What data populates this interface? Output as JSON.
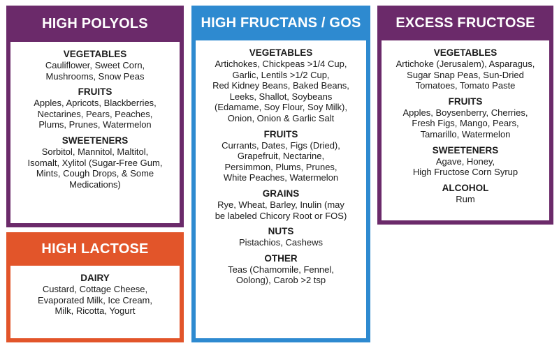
{
  "cards": {
    "polyols": {
      "title": "HIGH POLYOLS",
      "sections": [
        {
          "heading": "VEGETABLES",
          "lines": [
            "Cauliflower, Sweet Corn,",
            "Mushrooms, Snow Peas"
          ]
        },
        {
          "heading": "FRUITS",
          "lines": [
            "Apples, Apricots, Blackberries,",
            "Nectarines, Pears, Peaches,",
            "Plums, Prunes, Watermelon"
          ]
        },
        {
          "heading": "SWEETENERS",
          "lines": [
            "Sorbitol, Mannitol, Maltitol,",
            "Isomalt, Xylitol (Sugar-Free Gum,",
            "Mints, Cough Drops, & Some",
            "Medications)"
          ]
        }
      ]
    },
    "lactose": {
      "title": "HIGH LACTOSE",
      "sections": [
        {
          "heading": "DAIRY",
          "lines": [
            "Custard, Cottage Cheese,",
            "Evaporated Milk, Ice Cream,",
            "Milk, Ricotta, Yogurt"
          ]
        }
      ]
    },
    "fructans": {
      "title": "HIGH FRUCTANS / GOS",
      "sections": [
        {
          "heading": "VEGETABLES",
          "lines": [
            "Artichokes, Chickpeas >1/4 Cup,",
            "Garlic, Lentils >1/2 Cup,",
            "Red Kidney Beans, Baked Beans,",
            "Leeks, Shallot, Soybeans",
            "(Edamame, Soy Flour, Soy Milk),",
            "Onion, Onion & Garlic Salt"
          ]
        },
        {
          "heading": "FRUITS",
          "lines": [
            "Currants, Dates, Figs (Dried),",
            "Grapefruit, Nectarine,",
            "Persimmon, Plums, Prunes,",
            "White Peaches, Watermelon"
          ]
        },
        {
          "heading": "GRAINS",
          "lines": [
            "Rye, Wheat, Barley, Inulin (may",
            "be labeled Chicory Root or FOS)"
          ]
        },
        {
          "heading": "NUTS",
          "lines": [
            "Pistachios, Cashews"
          ]
        },
        {
          "heading": "OTHER",
          "lines": [
            "Teas (Chamomile, Fennel,",
            "Oolong), Carob >2 tsp"
          ]
        }
      ]
    },
    "fructose": {
      "title": "EXCESS FRUCTOSE",
      "sections": [
        {
          "heading": "VEGETABLES",
          "lines": [
            "Artichoke (Jerusalem), Asparagus,",
            "Sugar Snap Peas, Sun-Dried",
            "Tomatoes, Tomato Paste"
          ]
        },
        {
          "heading": "FRUITS",
          "lines": [
            "Apples, Boysenberry, Cherries,",
            "Fresh Figs, Mango, Pears,",
            "Tamarillo, Watermelon"
          ]
        },
        {
          "heading": "SWEETENERS",
          "lines": [
            "Agave, Honey,",
            "High Fructose Corn Syrup"
          ]
        },
        {
          "heading": "ALCOHOL",
          "lines": [
            "Rum"
          ]
        }
      ]
    }
  },
  "colors": {
    "purple": "#6b2a6a",
    "orange": "#e2552a",
    "blue": "#2e8ad0"
  }
}
